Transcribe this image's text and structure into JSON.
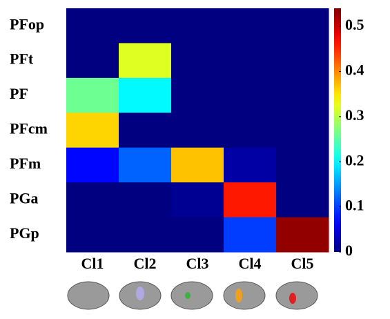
{
  "chart_data": {
    "type": "heatmap",
    "x_categories": [
      "Cl1",
      "Cl2",
      "Cl3",
      "Cl4",
      "Cl5"
    ],
    "y_categories": [
      "PFop",
      "PFt",
      "PF",
      "PFcm",
      "PFm",
      "PGa",
      "PGp"
    ],
    "values": [
      [
        0,
        0,
        0,
        0,
        0
      ],
      [
        0,
        0.32,
        0,
        0,
        0
      ],
      [
        0.26,
        0.2,
        0,
        0,
        0
      ],
      [
        0.36,
        0,
        0,
        0,
        0
      ],
      [
        0.07,
        0.12,
        0.37,
        0.02,
        0
      ],
      [
        0,
        0,
        0.01,
        0.46,
        0
      ],
      [
        0,
        0,
        0,
        0.1,
        0.53
      ]
    ],
    "colormap": "jet",
    "zlim": [
      0,
      0.54
    ],
    "zticks": [
      0,
      0.1,
      0.2,
      0.3,
      0.4,
      0.5
    ]
  }
}
